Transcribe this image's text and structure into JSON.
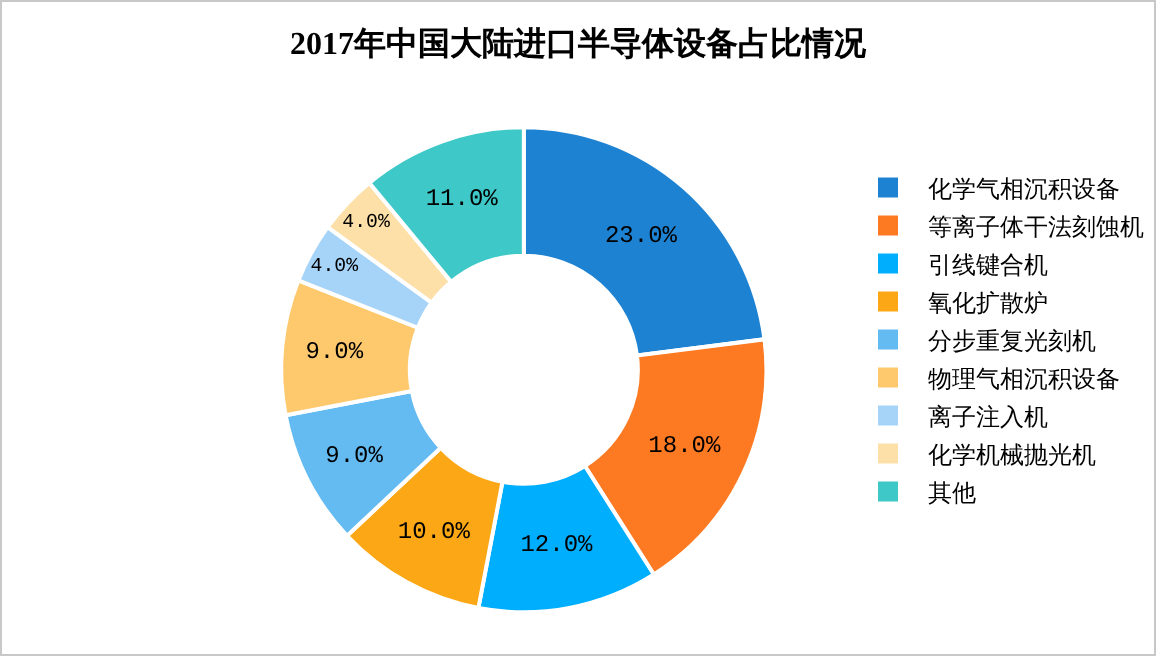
{
  "chart_data": {
    "type": "donut",
    "title": "2017年中国大陆进口半导体设备占比情况",
    "categories": [
      "化学气相沉积设备",
      "等离子体干法刻蚀机",
      "引线键合机",
      "氧化扩散炉",
      "分步重复光刻机",
      "物理气相沉积设备",
      "离子注入机",
      "化学机械抛光机",
      "其他"
    ],
    "values": [
      23,
      18,
      12,
      10,
      9,
      9,
      4,
      4,
      11
    ],
    "value_labels": [
      "23.0%",
      "18.0%",
      "12.0%",
      "10.0%",
      "9.0%",
      "9.0%",
      "4.0%",
      "4.0%",
      "11.0%"
    ],
    "colors": [
      "#1e82d2",
      "#fe7a22",
      "#00aefe",
      "#fca715",
      "#63bbf2",
      "#fec96d",
      "#a6d3f8",
      "#fde0a8",
      "#3ec8c8"
    ],
    "legend": "right"
  }
}
